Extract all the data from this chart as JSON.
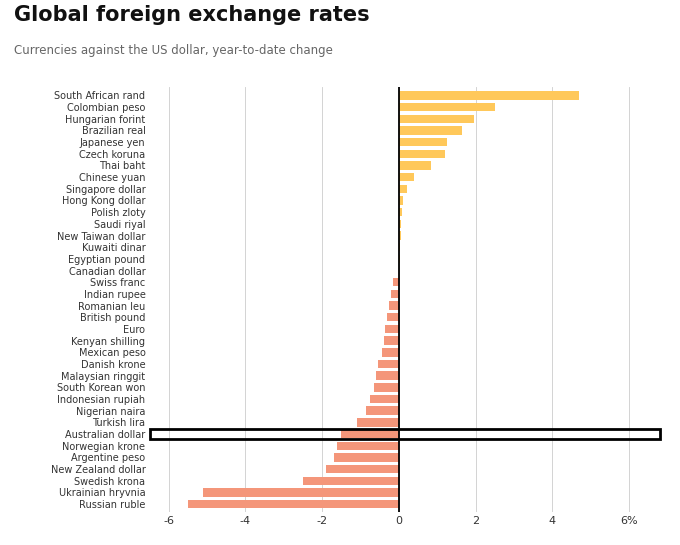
{
  "title": "Global foreign exchange rates",
  "subtitle": "Currencies against the US dollar, year-to-date change",
  "categories": [
    "South African rand",
    "Colombian peso",
    "Hungarian forint",
    "Brazilian real",
    "Japanese yen",
    "Czech koruna",
    "Thai baht",
    "Chinese yuan",
    "Singapore dollar",
    "Hong Kong dollar",
    "Polish zloty",
    "Saudi riyal",
    "New Taiwan dollar",
    "Kuwaiti dinar",
    "Egyptian pound",
    "Canadian dollar",
    "Swiss franc",
    "Indian rupee",
    "Romanian leu",
    "British pound",
    "Euro",
    "Kenyan shilling",
    "Mexican peso",
    "Danish krone",
    "Malaysian ringgit",
    "South Korean won",
    "Indonesian rupiah",
    "Nigerian naira",
    "Turkish lira",
    "Australian dollar",
    "Norwegian krone",
    "Argentine peso",
    "New Zealand dollar",
    "Swedish krona",
    "Ukrainian hryvnia",
    "Russian ruble"
  ],
  "values": [
    4.7,
    2.5,
    1.95,
    1.65,
    1.25,
    1.2,
    0.85,
    0.4,
    0.2,
    0.1,
    0.08,
    0.06,
    0.05,
    0.03,
    0.02,
    0.01,
    -0.15,
    -0.2,
    -0.25,
    -0.3,
    -0.35,
    -0.4,
    -0.45,
    -0.55,
    -0.6,
    -0.65,
    -0.75,
    -0.85,
    -1.1,
    -1.5,
    -1.6,
    -1.7,
    -1.9,
    -2.5,
    -5.1,
    -5.5
  ],
  "highlighted": "Australian dollar",
  "color_positive": "#FFC85A",
  "color_negative": "#F4967A",
  "xlim": [
    -6.5,
    6.8
  ],
  "xticks": [
    -6,
    -4,
    -2,
    0,
    2,
    4,
    6
  ],
  "xlabel_suffix": "%",
  "background_color": "#ffffff",
  "title_fontsize": 15,
  "subtitle_fontsize": 8.5,
  "label_fontsize": 7.0
}
